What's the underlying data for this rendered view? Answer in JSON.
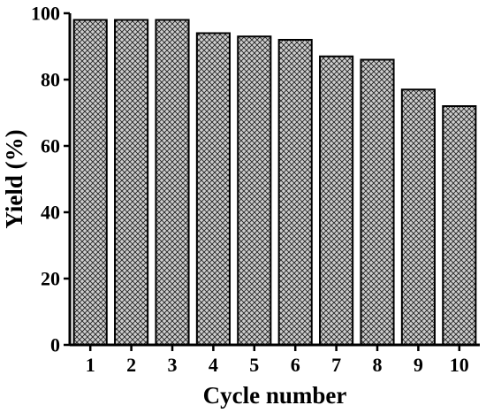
{
  "chart_data": {
    "type": "bar",
    "categories": [
      "1",
      "2",
      "3",
      "4",
      "5",
      "6",
      "7",
      "8",
      "9",
      "10"
    ],
    "values": [
      98,
      98,
      98,
      94,
      93,
      92,
      87,
      86,
      77,
      72
    ],
    "xlabel": "Cycle number",
    "ylabel": "Yield (%)",
    "ylim": [
      0,
      100
    ],
    "yticks": [
      "0",
      "20",
      "40",
      "60",
      "80",
      "100"
    ],
    "grid": false,
    "legend": "none",
    "colors": {
      "bar_fill": "#cfcfcf",
      "bar_hatch": "#222222",
      "axis": "#000000"
    }
  }
}
